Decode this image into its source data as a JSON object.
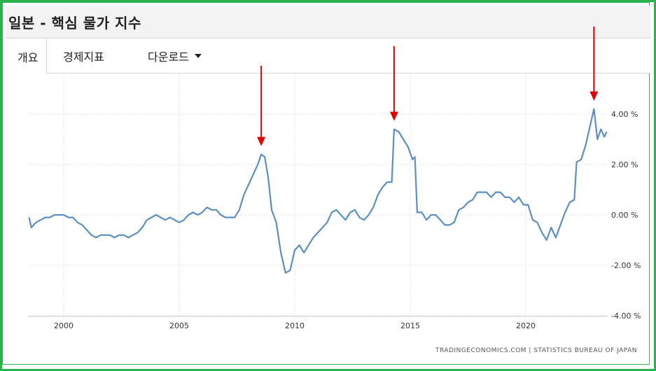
{
  "page": {
    "title": "일본 - 핵심 물가 지수"
  },
  "tabs": [
    {
      "label": "개요",
      "active": true
    },
    {
      "label": "경제지표",
      "active": false
    },
    {
      "label": "다운로드",
      "active": false,
      "dropdown": true
    }
  ],
  "colors": {
    "frame": "#2bb24c",
    "line": "#5b8fbf",
    "arrow": "#e00000",
    "grid": "#d3d3d3"
  },
  "source": "TRADINGECONOMICS.COM  |  STATISTICS BUREAU OF JAPAN",
  "chart_data": {
    "type": "line",
    "title": "",
    "xlabel": "",
    "ylabel": "",
    "xlim": [
      1998.4,
      2023.6
    ],
    "ylim": [
      -4,
      4
    ],
    "grid": true,
    "x_ticks": [
      "2000",
      "2005",
      "2010",
      "2015",
      "2020"
    ],
    "y_ticks": [
      "4.00 %",
      "2.00 %",
      "0.00 %",
      "-2.00 %",
      "-4.00 %"
    ],
    "series": [
      {
        "name": "",
        "points": [
          [
            1998.5,
            -0.1
          ],
          [
            1998.6,
            -0.5
          ],
          [
            1998.8,
            -0.3
          ],
          [
            1999.0,
            -0.2
          ],
          [
            1999.2,
            -0.1
          ],
          [
            1999.4,
            -0.1
          ],
          [
            1999.6,
            0.0
          ],
          [
            1999.8,
            0.0
          ],
          [
            2000.0,
            0.0
          ],
          [
            2000.2,
            -0.1
          ],
          [
            2000.4,
            -0.1
          ],
          [
            2000.6,
            -0.3
          ],
          [
            2000.8,
            -0.4
          ],
          [
            2001.0,
            -0.6
          ],
          [
            2001.2,
            -0.8
          ],
          [
            2001.4,
            -0.9
          ],
          [
            2001.6,
            -0.8
          ],
          [
            2001.8,
            -0.8
          ],
          [
            2002.0,
            -0.8
          ],
          [
            2002.2,
            -0.9
          ],
          [
            2002.4,
            -0.8
          ],
          [
            2002.6,
            -0.8
          ],
          [
            2002.8,
            -0.9
          ],
          [
            2003.0,
            -0.8
          ],
          [
            2003.2,
            -0.7
          ],
          [
            2003.4,
            -0.5
          ],
          [
            2003.6,
            -0.2
          ],
          [
            2003.8,
            -0.1
          ],
          [
            2004.0,
            0.0
          ],
          [
            2004.2,
            -0.1
          ],
          [
            2004.4,
            -0.2
          ],
          [
            2004.6,
            -0.1
          ],
          [
            2004.8,
            -0.2
          ],
          [
            2005.0,
            -0.3
          ],
          [
            2005.2,
            -0.2
          ],
          [
            2005.4,
            0.0
          ],
          [
            2005.6,
            0.1
          ],
          [
            2005.8,
            0.0
          ],
          [
            2006.0,
            0.1
          ],
          [
            2006.2,
            0.3
          ],
          [
            2006.4,
            0.2
          ],
          [
            2006.6,
            0.2
          ],
          [
            2006.8,
            0.0
          ],
          [
            2007.0,
            -0.1
          ],
          [
            2007.2,
            -0.1
          ],
          [
            2007.4,
            -0.1
          ],
          [
            2007.6,
            0.2
          ],
          [
            2007.8,
            0.8
          ],
          [
            2008.0,
            1.2
          ],
          [
            2008.2,
            1.6
          ],
          [
            2008.4,
            2.0
          ],
          [
            2008.55,
            2.4
          ],
          [
            2008.7,
            2.3
          ],
          [
            2008.85,
            1.5
          ],
          [
            2009.0,
            0.2
          ],
          [
            2009.2,
            -0.3
          ],
          [
            2009.4,
            -1.5
          ],
          [
            2009.6,
            -2.3
          ],
          [
            2009.8,
            -2.2
          ],
          [
            2010.0,
            -1.4
          ],
          [
            2010.2,
            -1.2
          ],
          [
            2010.4,
            -1.5
          ],
          [
            2010.6,
            -1.2
          ],
          [
            2010.8,
            -0.9
          ],
          [
            2011.0,
            -0.7
          ],
          [
            2011.2,
            -0.5
          ],
          [
            2011.4,
            -0.3
          ],
          [
            2011.6,
            0.1
          ],
          [
            2011.8,
            0.2
          ],
          [
            2012.0,
            0.0
          ],
          [
            2012.2,
            -0.2
          ],
          [
            2012.4,
            0.1
          ],
          [
            2012.6,
            0.2
          ],
          [
            2012.8,
            -0.1
          ],
          [
            2013.0,
            -0.2
          ],
          [
            2013.2,
            0.0
          ],
          [
            2013.4,
            0.3
          ],
          [
            2013.6,
            0.8
          ],
          [
            2013.8,
            1.1
          ],
          [
            2014.0,
            1.3
          ],
          [
            2014.2,
            1.3
          ],
          [
            2014.3,
            3.4
          ],
          [
            2014.5,
            3.3
          ],
          [
            2014.7,
            3.0
          ],
          [
            2014.9,
            2.7
          ],
          [
            2015.1,
            2.2
          ],
          [
            2015.2,
            2.3
          ],
          [
            2015.3,
            0.1
          ],
          [
            2015.5,
            0.1
          ],
          [
            2015.7,
            -0.2
          ],
          [
            2015.9,
            0.0
          ],
          [
            2016.1,
            0.0
          ],
          [
            2016.3,
            -0.2
          ],
          [
            2016.5,
            -0.4
          ],
          [
            2016.7,
            -0.4
          ],
          [
            2016.9,
            -0.3
          ],
          [
            2017.1,
            0.2
          ],
          [
            2017.3,
            0.3
          ],
          [
            2017.5,
            0.5
          ],
          [
            2017.7,
            0.6
          ],
          [
            2017.9,
            0.9
          ],
          [
            2018.1,
            0.9
          ],
          [
            2018.3,
            0.9
          ],
          [
            2018.5,
            0.7
          ],
          [
            2018.7,
            0.9
          ],
          [
            2018.9,
            0.9
          ],
          [
            2019.1,
            0.7
          ],
          [
            2019.3,
            0.7
          ],
          [
            2019.5,
            0.5
          ],
          [
            2019.7,
            0.7
          ],
          [
            2019.9,
            0.4
          ],
          [
            2020.1,
            0.4
          ],
          [
            2020.3,
            -0.2
          ],
          [
            2020.5,
            -0.3
          ],
          [
            2020.7,
            -0.7
          ],
          [
            2020.9,
            -1.0
          ],
          [
            2021.1,
            -0.5
          ],
          [
            2021.3,
            -0.9
          ],
          [
            2021.5,
            -0.4
          ],
          [
            2021.7,
            0.1
          ],
          [
            2021.9,
            0.5
          ],
          [
            2022.1,
            0.6
          ],
          [
            2022.2,
            2.1
          ],
          [
            2022.4,
            2.2
          ],
          [
            2022.6,
            2.8
          ],
          [
            2022.8,
            3.6
          ],
          [
            2022.95,
            4.2
          ],
          [
            2023.1,
            3.0
          ],
          [
            2023.25,
            3.4
          ],
          [
            2023.4,
            3.1
          ],
          [
            2023.5,
            3.3
          ]
        ]
      }
    ],
    "annotations": [
      {
        "type": "arrow",
        "x": 2008.55,
        "y": 2.4
      },
      {
        "type": "arrow",
        "x": 2014.3,
        "y": 3.4
      },
      {
        "type": "arrow",
        "x": 2022.95,
        "y": 4.2
      }
    ]
  }
}
